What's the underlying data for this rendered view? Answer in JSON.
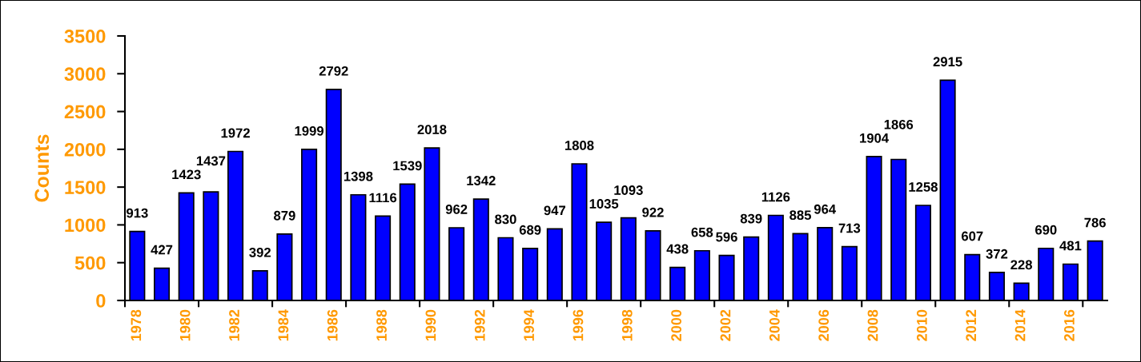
{
  "chart_data": {
    "type": "bar",
    "ylabel": "Counts",
    "categories": [
      "1978",
      null,
      "1980",
      null,
      "1982",
      null,
      "1984",
      null,
      "1986",
      null,
      "1988",
      null,
      "1990",
      null,
      "1992",
      null,
      "1994",
      null,
      "1996",
      null,
      "1998",
      null,
      "2000",
      null,
      "2002",
      null,
      "2004",
      null,
      "2006",
      null,
      "2008",
      null,
      "2010",
      null,
      "2012",
      null,
      "2014",
      null,
      "2016",
      null
    ],
    "values": [
      913,
      427,
      1423,
      1437,
      1972,
      392,
      879,
      1999,
      2792,
      1398,
      1116,
      1539,
      2018,
      962,
      1342,
      830,
      689,
      947,
      1808,
      1035,
      1093,
      922,
      438,
      658,
      596,
      839,
      1126,
      885,
      964,
      713,
      1904,
      1866,
      1258,
      2915,
      607,
      372,
      228,
      690,
      481,
      786
    ],
    "color": "#0000ff",
    "ylim": [
      0,
      3500
    ],
    "yticks": [
      0,
      500,
      1000,
      1500,
      2000,
      2500,
      3000,
      3500
    ],
    "data_labels": true,
    "grid": false
  }
}
